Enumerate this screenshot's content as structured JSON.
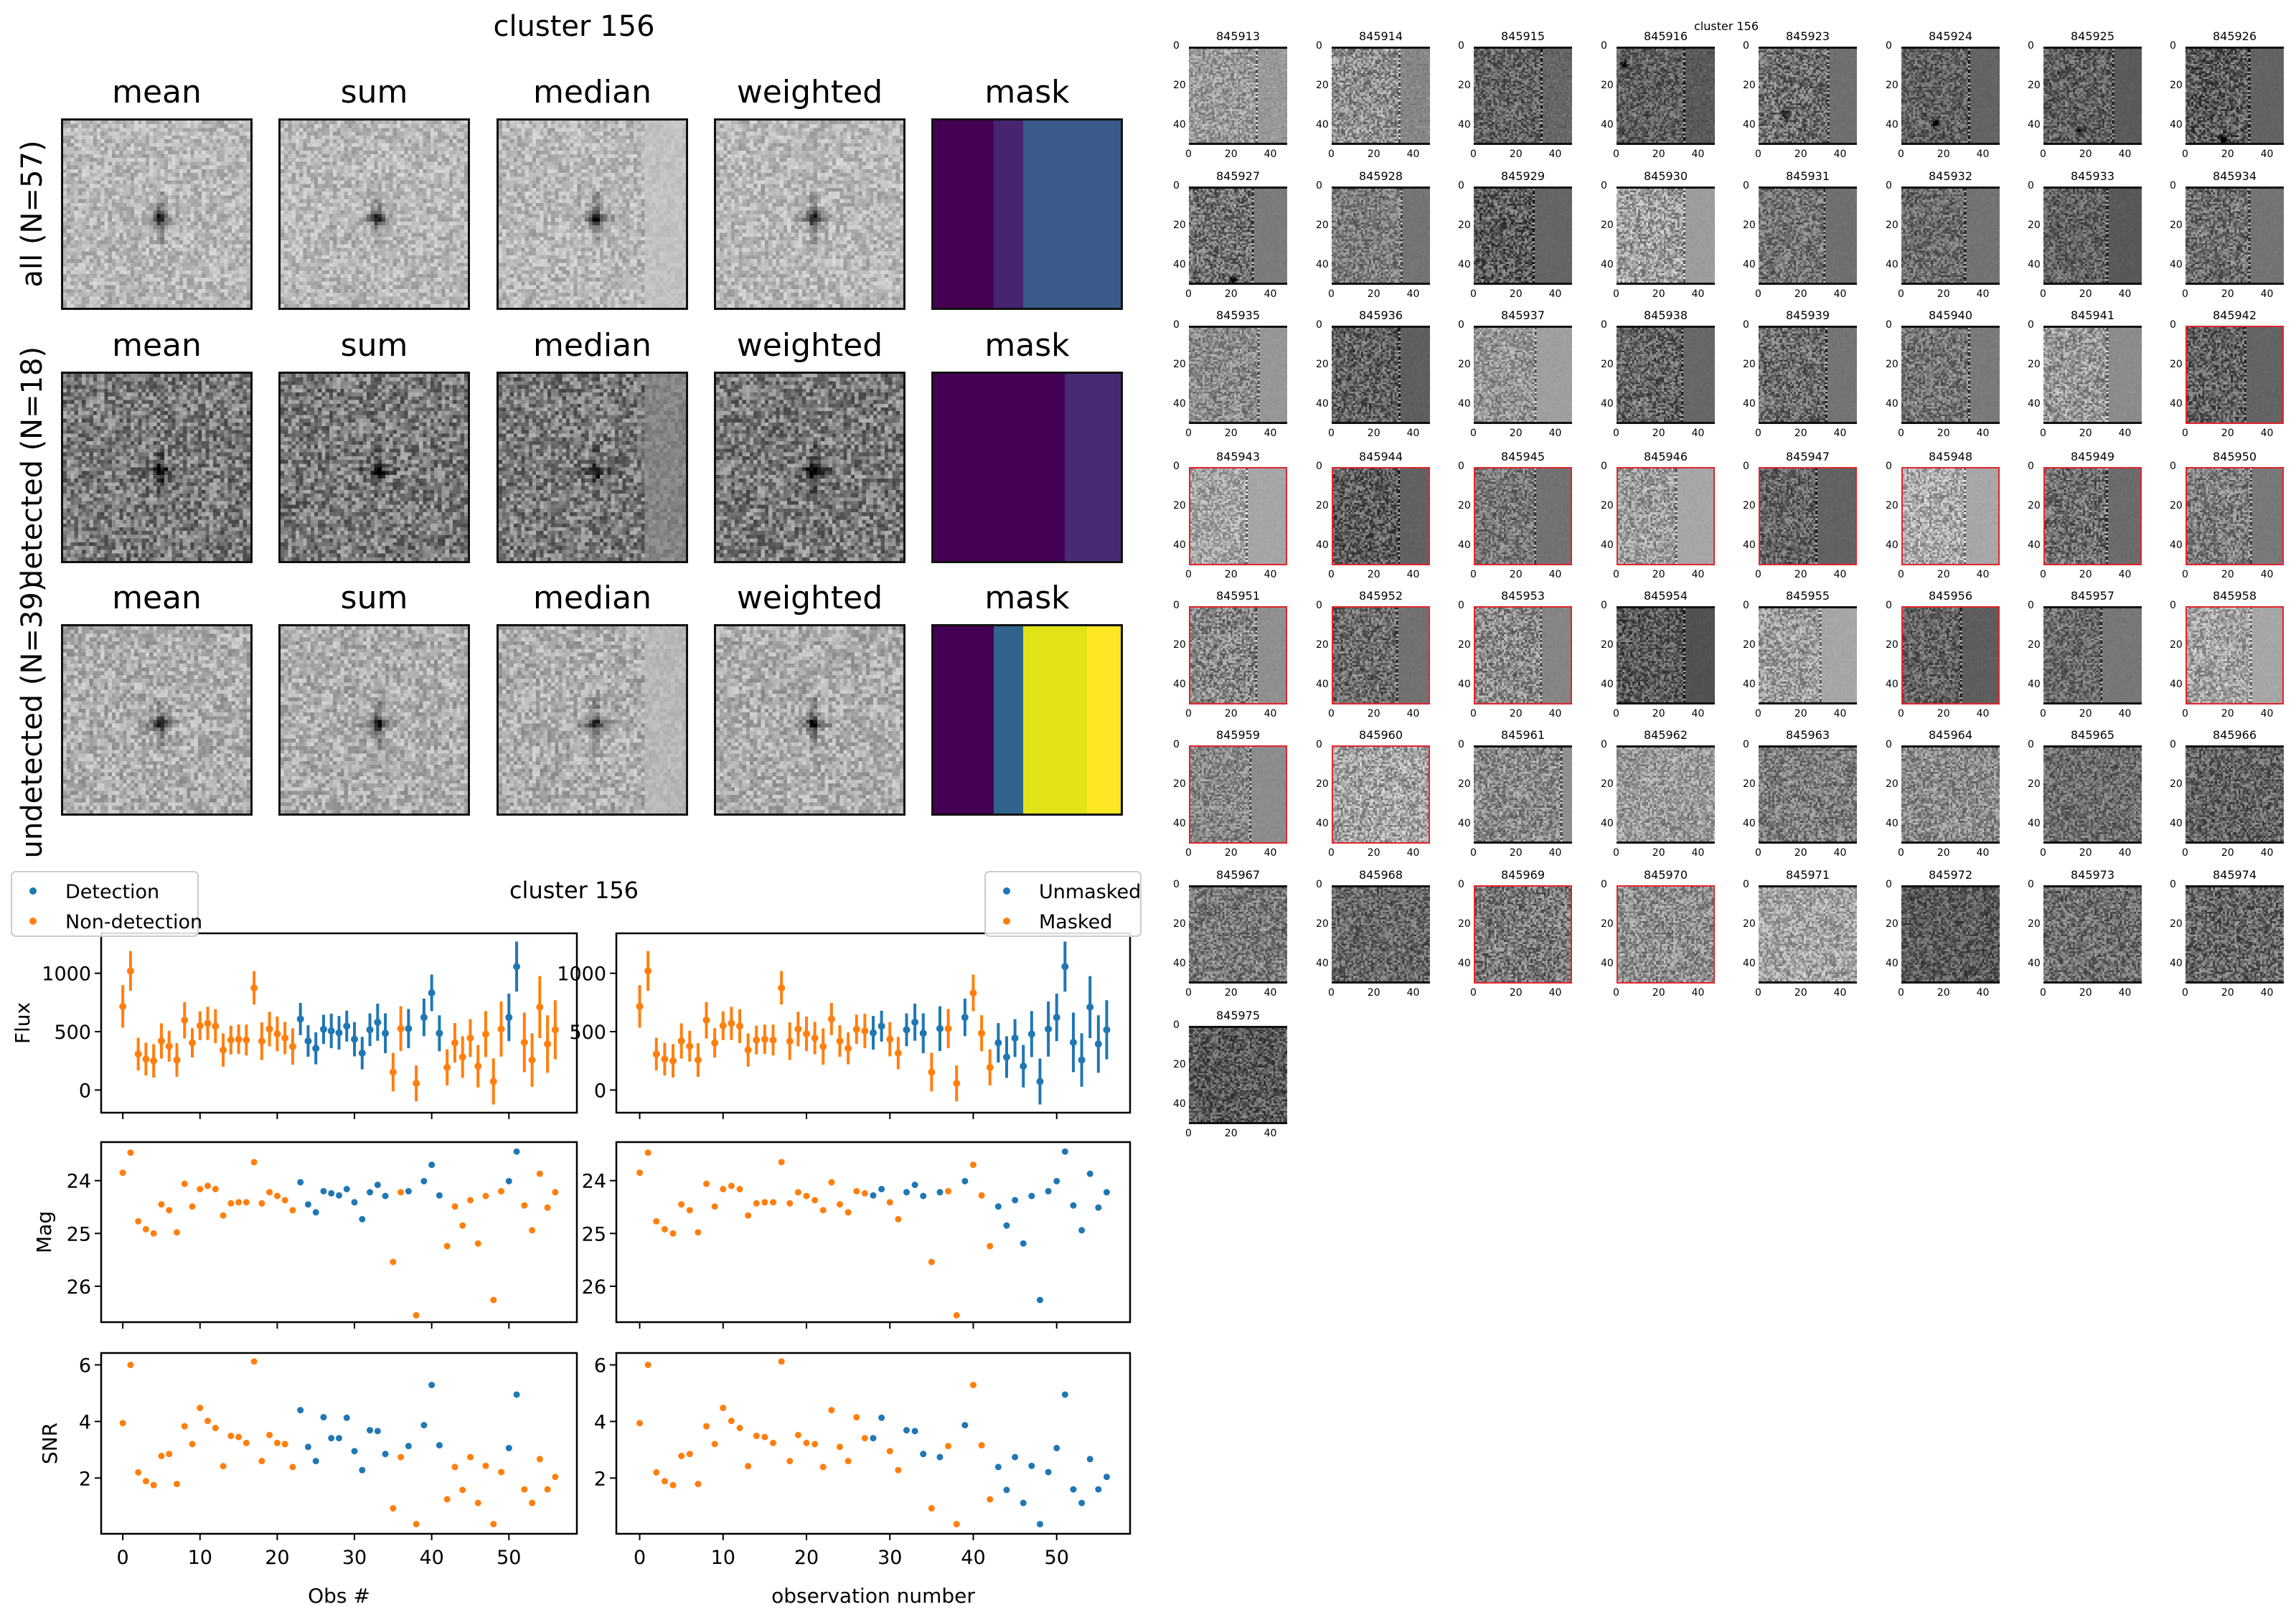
{
  "figure_title": "cluster 156",
  "stack_panel": {
    "column_titles": [
      "mean",
      "sum",
      "median",
      "weighted",
      "mask"
    ],
    "rows": [
      {
        "label": "all (N=57)",
        "mask_bands": [
          {
            "from": 0,
            "to": 16,
            "color": "#440154"
          },
          {
            "from": 16,
            "to": 24,
            "color": "#46246f"
          },
          {
            "from": 24,
            "to": 50,
            "color": "#3a5a8b"
          }
        ]
      },
      {
        "label": "detected (N=18)",
        "mask_bands": [
          {
            "from": 0,
            "to": 35,
            "color": "#440154"
          },
          {
            "from": 35,
            "to": 50,
            "color": "#472b72"
          }
        ]
      },
      {
        "label": "undetected (N=39)",
        "mask_bands": [
          {
            "from": 0,
            "to": 16,
            "color": "#440154"
          },
          {
            "from": 16,
            "to": 24,
            "color": "#31648c"
          },
          {
            "from": 24,
            "to": 41,
            "color": "#e1e318"
          },
          {
            "from": 41,
            "to": 50,
            "color": "#fde624"
          }
        ]
      }
    ]
  },
  "thumbnails": {
    "title": "cluster 156",
    "axis_ticks": [
      "0",
      "20",
      "40"
    ],
    "detected_border_color": "#e3242b",
    "items": [
      {
        "id": "845913",
        "detected": false
      },
      {
        "id": "845914",
        "detected": false
      },
      {
        "id": "845915",
        "detected": false
      },
      {
        "id": "845916",
        "detected": false
      },
      {
        "id": "845923",
        "detected": false
      },
      {
        "id": "845924",
        "detected": false
      },
      {
        "id": "845925",
        "detected": false
      },
      {
        "id": "845926",
        "detected": false
      },
      {
        "id": "845927",
        "detected": false
      },
      {
        "id": "845928",
        "detected": false
      },
      {
        "id": "845929",
        "detected": false
      },
      {
        "id": "845930",
        "detected": false
      },
      {
        "id": "845931",
        "detected": false
      },
      {
        "id": "845932",
        "detected": false
      },
      {
        "id": "845933",
        "detected": false
      },
      {
        "id": "845934",
        "detected": false
      },
      {
        "id": "845935",
        "detected": false
      },
      {
        "id": "845936",
        "detected": false
      },
      {
        "id": "845937",
        "detected": false
      },
      {
        "id": "845938",
        "detected": false
      },
      {
        "id": "845939",
        "detected": false
      },
      {
        "id": "845940",
        "detected": false
      },
      {
        "id": "845941",
        "detected": false
      },
      {
        "id": "845942",
        "detected": true
      },
      {
        "id": "845943",
        "detected": true
      },
      {
        "id": "845944",
        "detected": true
      },
      {
        "id": "845945",
        "detected": true
      },
      {
        "id": "845946",
        "detected": true
      },
      {
        "id": "845947",
        "detected": true
      },
      {
        "id": "845948",
        "detected": true
      },
      {
        "id": "845949",
        "detected": true
      },
      {
        "id": "845950",
        "detected": true
      },
      {
        "id": "845951",
        "detected": true
      },
      {
        "id": "845952",
        "detected": true
      },
      {
        "id": "845953",
        "detected": true
      },
      {
        "id": "845954",
        "detected": false
      },
      {
        "id": "845955",
        "detected": false
      },
      {
        "id": "845956",
        "detected": true
      },
      {
        "id": "845957",
        "detected": false
      },
      {
        "id": "845958",
        "detected": true
      },
      {
        "id": "845959",
        "detected": true
      },
      {
        "id": "845960",
        "detected": true
      },
      {
        "id": "845961",
        "detected": false
      },
      {
        "id": "845962",
        "detected": false
      },
      {
        "id": "845963",
        "detected": false
      },
      {
        "id": "845964",
        "detected": false
      },
      {
        "id": "845965",
        "detected": false
      },
      {
        "id": "845966",
        "detected": false
      },
      {
        "id": "845967",
        "detected": false
      },
      {
        "id": "845968",
        "detected": false
      },
      {
        "id": "845969",
        "detected": true
      },
      {
        "id": "845970",
        "detected": true
      },
      {
        "id": "845971",
        "detected": false
      },
      {
        "id": "845972",
        "detected": false
      },
      {
        "id": "845973",
        "detected": false
      },
      {
        "id": "845974",
        "detected": false
      },
      {
        "id": "845975",
        "detected": false
      }
    ]
  },
  "chart_data": {
    "type": "scatter",
    "title": "cluster 156",
    "x": [
      0,
      1,
      2,
      3,
      4,
      5,
      6,
      7,
      8,
      9,
      10,
      11,
      12,
      13,
      14,
      15,
      16,
      17,
      18,
      19,
      20,
      21,
      22,
      23,
      24,
      25,
      26,
      27,
      28,
      29,
      30,
      31,
      32,
      33,
      34,
      35,
      36,
      37,
      38,
      39,
      40,
      41,
      42,
      43,
      44,
      45,
      46,
      47,
      48,
      49,
      50,
      51,
      52,
      53,
      54,
      55,
      56
    ],
    "flux": [
      716,
      1020,
      308,
      265,
      250,
      420,
      375,
      257,
      598,
      404,
      551,
      571,
      547,
      343,
      428,
      435,
      428,
      875,
      418,
      522,
      481,
      445,
      373,
      608,
      420,
      357,
      520,
      506,
      490,
      547,
      435,
      316,
      516,
      581,
      486,
      153,
      526,
      526,
      57,
      622,
      832,
      486,
      194,
      404,
      282,
      445,
      204,
      479,
      73,
      522,
      622,
      1057,
      408,
      257,
      710,
      394,
      516
    ],
    "flux_err": [
      182,
      170,
      140,
      140,
      143,
      151,
      132,
      144,
      156,
      126,
      123,
      142,
      145,
      142,
      123,
      126,
      132,
      143,
      161,
      148,
      148,
      139,
      156,
      138,
      135,
      137,
      125,
      148,
      144,
      132,
      147,
      139,
      140,
      159,
      171,
      165,
      192,
      168,
      154,
      161,
      157,
      154,
      155,
      169,
      178,
      162,
      182,
      197,
      197,
      236,
      203,
      214,
      255,
      229,
      266,
      246,
      253
    ],
    "mag": [
      23.85,
      23.47,
      24.77,
      24.92,
      25.0,
      24.45,
      24.56,
      24.98,
      24.06,
      24.49,
      24.16,
      24.1,
      24.16,
      24.66,
      24.43,
      24.41,
      24.41,
      23.65,
      24.43,
      24.22,
      24.29,
      24.37,
      24.56,
      24.03,
      24.45,
      24.6,
      24.2,
      24.24,
      24.28,
      24.16,
      24.41,
      24.73,
      24.22,
      24.08,
      24.29,
      25.54,
      24.22,
      24.2,
      26.55,
      24.01,
      23.7,
      24.28,
      25.24,
      24.49,
      24.85,
      24.37,
      25.19,
      24.29,
      26.26,
      24.2,
      24.01,
      23.45,
      24.47,
      24.94,
      23.87,
      24.51,
      24.22
    ],
    "snr": [
      3.94,
      6.0,
      2.2,
      1.89,
      1.75,
      2.78,
      2.85,
      1.79,
      3.83,
      3.2,
      4.48,
      4.02,
      3.77,
      2.42,
      3.49,
      3.45,
      3.24,
      6.12,
      2.6,
      3.52,
      3.24,
      3.2,
      2.39,
      4.4,
      3.1,
      2.6,
      4.15,
      3.41,
      3.41,
      4.13,
      2.95,
      2.28,
      3.69,
      3.66,
      2.85,
      0.93,
      2.74,
      3.13,
      0.37,
      3.87,
      5.29,
      3.16,
      1.25,
      2.39,
      1.58,
      2.74,
      1.12,
      2.43,
      0.37,
      2.21,
      3.06,
      4.95,
      1.6,
      1.12,
      2.67,
      1.6,
      2.04
    ],
    "detected": [
      0,
      0,
      0,
      0,
      0,
      0,
      0,
      0,
      0,
      0,
      0,
      0,
      0,
      0,
      0,
      0,
      0,
      0,
      0,
      0,
      0,
      0,
      0,
      1,
      1,
      1,
      1,
      1,
      1,
      1,
      1,
      1,
      1,
      1,
      1,
      0,
      0,
      1,
      0,
      1,
      1,
      1,
      0,
      0,
      0,
      0,
      0,
      0,
      0,
      0,
      1,
      1,
      0,
      0,
      0,
      0,
      0
    ],
    "masked": [
      1,
      1,
      1,
      1,
      1,
      1,
      1,
      1,
      1,
      1,
      1,
      1,
      1,
      1,
      1,
      1,
      1,
      1,
      1,
      1,
      1,
      1,
      1,
      1,
      1,
      1,
      1,
      1,
      0,
      0,
      1,
      1,
      0,
      0,
      0,
      1,
      0,
      1,
      1,
      0,
      1,
      1,
      1,
      0,
      0,
      0,
      0,
      0,
      0,
      0,
      0,
      0,
      0,
      0,
      0,
      0,
      0
    ],
    "xlim": [
      -2.8,
      58.8
    ],
    "xticks": [
      0,
      10,
      20,
      30,
      40,
      50
    ],
    "grid": false,
    "colors": {
      "blue": "#1f77b4",
      "orange": "#ff7f0e"
    },
    "panels": [
      {
        "column": "left",
        "grouping": "detected",
        "legend": [
          "Detection",
          "Non-detection"
        ],
        "legend_placement": "upper-left",
        "xlabel": "Obs #",
        "show_ylabels": true
      },
      {
        "column": "right",
        "grouping": "masked",
        "legend": [
          "Unmasked",
          "Masked"
        ],
        "legend_placement": "upper-right",
        "xlabel": "observation number",
        "show_ylabels": false
      }
    ],
    "rows": [
      {
        "ylabel": "Flux",
        "key": "flux",
        "err": "flux_err",
        "ylim": [
          -194,
          1342
        ],
        "yticks": [
          0,
          500,
          1000
        ],
        "yticklabels": [
          "0",
          "500",
          "1000"
        ]
      },
      {
        "ylabel": "Mag",
        "key": "mag",
        "ylim": [
          26.68,
          23.27
        ],
        "yticks": [
          24,
          25,
          26
        ],
        "yticklabels": [
          "24",
          "25",
          "26"
        ]
      },
      {
        "ylabel": "SNR",
        "key": "snr",
        "ylim": [
          0.03,
          6.42
        ],
        "yticks": [
          2,
          4,
          6
        ],
        "yticklabels": [
          "2",
          "4",
          "6"
        ]
      }
    ],
    "xticklabels": [
      "0",
      "10",
      "20",
      "30",
      "40",
      "50"
    ]
  }
}
